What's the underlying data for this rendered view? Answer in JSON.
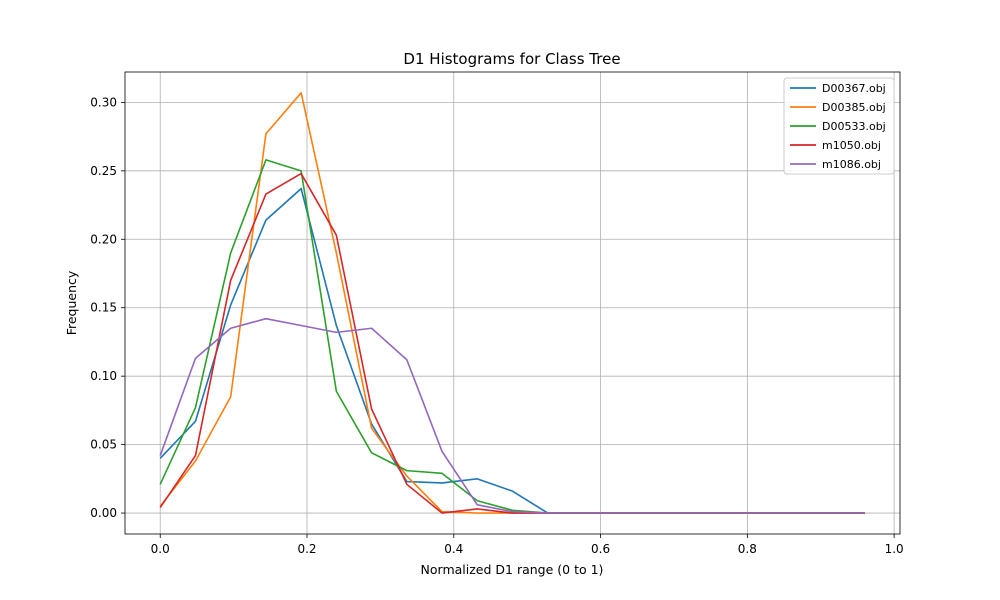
{
  "chart_data": {
    "type": "line",
    "title": "D1 Histograms for Class Tree",
    "xlabel": "Normalized D1 range (0 to 1)",
    "ylabel": "Frequency",
    "xlim": [
      -0.048,
      1.008
    ],
    "ylim": [
      -0.0153,
      0.3222
    ],
    "xticks": [
      0.0,
      0.2,
      0.4,
      0.6,
      0.8,
      1.0
    ],
    "xtick_labels": [
      "0.0",
      "0.2",
      "0.4",
      "0.6",
      "0.8",
      "1.0"
    ],
    "yticks": [
      0.0,
      0.05,
      0.1,
      0.15,
      0.2,
      0.25,
      0.3
    ],
    "ytick_labels": [
      "0.00",
      "0.05",
      "0.10",
      "0.15",
      "0.20",
      "0.25",
      "0.30"
    ],
    "grid": true,
    "legend_position": "top-right",
    "x": [
      0.0,
      0.048,
      0.096,
      0.144,
      0.192,
      0.24,
      0.288,
      0.336,
      0.384,
      0.432,
      0.48,
      0.528,
      0.576,
      0.624,
      0.672,
      0.72,
      0.768,
      0.816,
      0.864,
      0.912,
      0.96
    ],
    "series": [
      {
        "name": "D00367.obj",
        "color": "#1f77b4",
        "values": [
          0.04,
          0.067,
          0.152,
          0.214,
          0.237,
          0.137,
          0.065,
          0.023,
          0.022,
          0.025,
          0.016,
          0.0,
          0.0,
          0.0,
          0.0,
          0.0,
          0.0,
          0.0,
          0.0,
          0.0,
          0.0
        ]
      },
      {
        "name": "D00385.obj",
        "color": "#ff7f0e",
        "values": [
          0.005,
          0.038,
          0.085,
          0.277,
          0.307,
          0.19,
          0.062,
          0.027,
          0.001,
          0.0,
          0.0,
          0.0,
          0.0,
          0.0,
          0.0,
          0.0,
          0.0,
          0.0,
          0.0,
          0.0,
          0.0
        ]
      },
      {
        "name": "D00533.obj",
        "color": "#2ca02c",
        "values": [
          0.021,
          0.077,
          0.19,
          0.258,
          0.25,
          0.089,
          0.044,
          0.031,
          0.029,
          0.009,
          0.002,
          0.0,
          0.0,
          0.0,
          0.0,
          0.0,
          0.0,
          0.0,
          0.0,
          0.0,
          0.0
        ]
      },
      {
        "name": "m1050.obj",
        "color": "#d62728",
        "values": [
          0.004,
          0.042,
          0.17,
          0.233,
          0.248,
          0.203,
          0.076,
          0.021,
          0.0,
          0.003,
          0.0,
          0.0,
          0.0,
          0.0,
          0.0,
          0.0,
          0.0,
          0.0,
          0.0,
          0.0,
          0.0
        ]
      },
      {
        "name": "m1086.obj",
        "color": "#9467bd",
        "values": [
          0.042,
          0.113,
          0.135,
          0.142,
          0.137,
          0.132,
          0.135,
          0.112,
          0.045,
          0.006,
          0.001,
          0.0,
          0.0,
          0.0,
          0.0,
          0.0,
          0.0,
          0.0,
          0.0,
          0.0,
          0.0
        ]
      }
    ]
  }
}
